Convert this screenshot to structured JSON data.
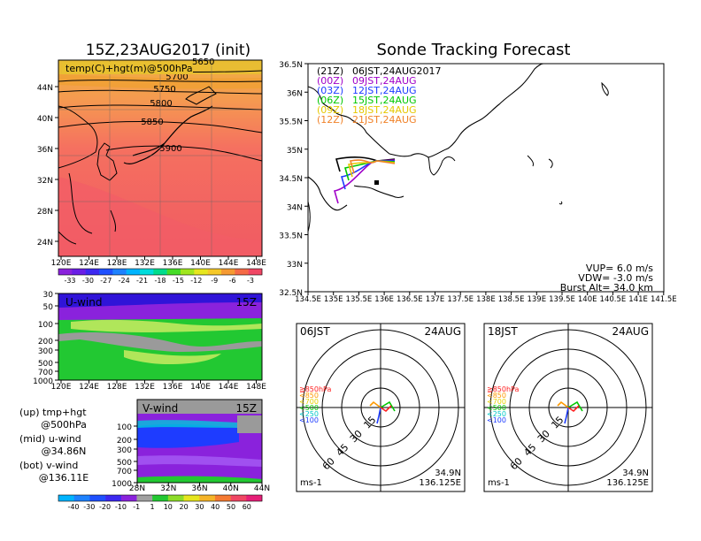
{
  "left_title": "15Z,23AUG2017 (init)",
  "right_title": "Sonde Tracking Forecast",
  "temp_map": {
    "label": "temp(C)+hgt(m)@500hPa",
    "contours": [
      "5650",
      "5700",
      "5750",
      "5800",
      "5850",
      "5900"
    ],
    "yticks": [
      "44N",
      "40N",
      "36N",
      "32N",
      "28N",
      "24N"
    ],
    "xticks": [
      "120E",
      "124E",
      "128E",
      "132E",
      "136E",
      "140E",
      "144E",
      "148E"
    ],
    "colorbar": [
      "-33",
      "-30",
      "-27",
      "-24",
      "-21",
      "-18",
      "-15",
      "-12",
      "-9",
      "-6",
      "-3"
    ]
  },
  "uwind": {
    "label": "U-wind",
    "time": "15Z",
    "yticks": [
      "30",
      "50",
      "100",
      "200",
      "300",
      "500",
      "700",
      "1000"
    ],
    "xticks": [
      "120E",
      "124E",
      "128E",
      "132E",
      "136E",
      "140E",
      "144E",
      "148E"
    ]
  },
  "vwind": {
    "label": "V-wind",
    "time": "15Z",
    "yticks": [
      "100",
      "200",
      "300",
      "500",
      "700",
      "1000"
    ],
    "xticks": [
      "28N",
      "32N",
      "36N",
      "40N",
      "44N"
    ],
    "colorbar": [
      "-40",
      "-30",
      "-20",
      "-10",
      "-1",
      "1",
      "10",
      "20",
      "30",
      "40",
      "50",
      "60"
    ]
  },
  "legend_notes": [
    {
      "a": "(up) tmp+hgt",
      "b": "@500hPa"
    },
    {
      "a": "(mid) u-wind",
      "b": "@34.86N"
    },
    {
      "a": "(bot) v-wind",
      "b": "@136.11E"
    }
  ],
  "track": {
    "yticks": [
      "36.5N",
      "36N",
      "35.5N",
      "35N",
      "34.5N",
      "34N",
      "33.5N",
      "33N",
      "32.5N"
    ],
    "xticks": [
      "134.5E",
      "135E",
      "135.5E",
      "136E",
      "136.5E",
      "137E",
      "137.5E",
      "138E",
      "138.5E",
      "139E",
      "139.5E",
      "140E",
      "140.5E",
      "141E",
      "141.5E"
    ],
    "launches": [
      {
        "run": "(21Z)",
        "time": "06JST,24AUG2017",
        "color": "#000000"
      },
      {
        "run": "(00Z)",
        "time": "09JST,24AUG",
        "color": "#a000c8"
      },
      {
        "run": "(03Z)",
        "time": "12JST,24AUG",
        "color": "#1e3cff"
      },
      {
        "run": "(06Z)",
        "time": "15JST,24AUG",
        "color": "#00c800"
      },
      {
        "run": "(09Z)",
        "time": "18JST,24AUG",
        "color": "#e6c800"
      },
      {
        "run": "(12Z)",
        "time": "21JST,24AUG",
        "color": "#f08228"
      }
    ],
    "params": [
      "VUP=  6.0 m/s",
      "VDW= -3.0 m/s",
      "Burst Alt= 34.0 km"
    ]
  },
  "hodographs": [
    {
      "time": "06JST",
      "date": "24AUG",
      "lat": "34.9N",
      "lon": "136.125E",
      "unit": "ms-1"
    },
    {
      "time": "18JST",
      "date": "24AUG",
      "lat": "34.9N",
      "lon": "136.125E",
      "unit": "ms-1"
    }
  ],
  "ring_labels": [
    "15",
    "30",
    "45",
    "60"
  ],
  "levels": [
    "≧850hPa",
    "<850",
    "<700",
    "<500",
    "<250",
    "<100"
  ],
  "level_colors": [
    "#ff2020",
    "#ff9900",
    "#e6d200",
    "#00c800",
    "#00c8c8",
    "#1e3cff"
  ]
}
